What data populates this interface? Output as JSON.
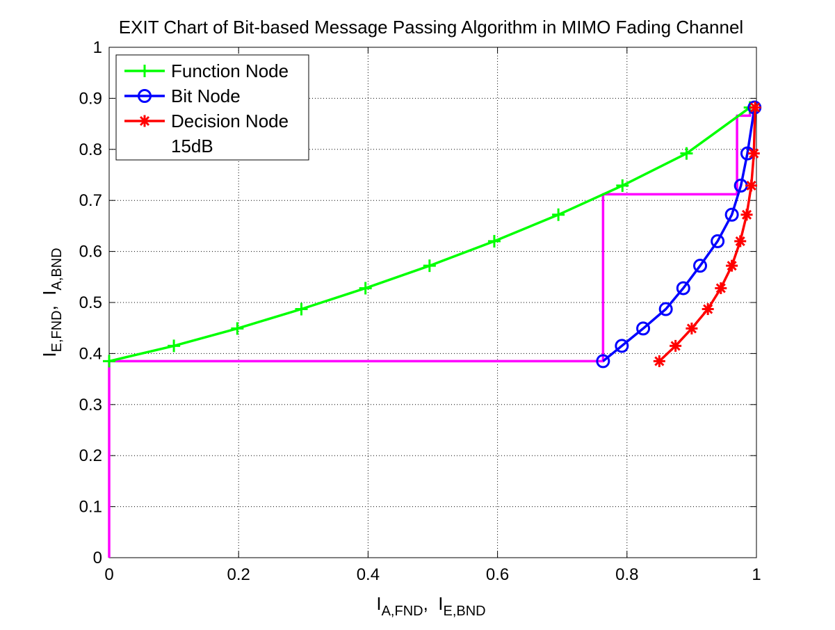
{
  "chart_data": {
    "type": "line",
    "title": "EXIT Chart of Bit-based Message Passing Algorithm in MIMO Fading Channel",
    "xlabel": {
      "main": "I",
      "sub1": "A,FND",
      "sep": ",  I",
      "sub2": "E,BND"
    },
    "ylabel": {
      "main": "I",
      "sub1": "E,FND",
      "sep": ",  I",
      "sub2": "A,BND"
    },
    "xlim": [
      0,
      1
    ],
    "ylim": [
      0,
      1
    ],
    "xticks": [
      "0",
      "0.2",
      "0.4",
      "0.6",
      "0.8",
      "1"
    ],
    "yticks": [
      "0",
      "0.1",
      "0.2",
      "0.3",
      "0.4",
      "0.5",
      "0.6",
      "0.7",
      "0.8",
      "0.9",
      "1"
    ],
    "grid": true,
    "legend_position": "top-left",
    "legend_extra": "15dB",
    "series": [
      {
        "name": "Function Node",
        "color": "#00ff00",
        "marker": "plus",
        "x": [
          0.0,
          0.1,
          0.198,
          0.297,
          0.396,
          0.495,
          0.595,
          0.694,
          0.793,
          0.892,
          0.99
        ],
        "y": [
          0.385,
          0.415,
          0.449,
          0.487,
          0.528,
          0.572,
          0.62,
          0.672,
          0.729,
          0.792,
          0.882
        ]
      },
      {
        "name": "Bit Node",
        "color": "#0000ff",
        "marker": "circle",
        "x": [
          0.763,
          0.792,
          0.825,
          0.86,
          0.887,
          0.913,
          0.94,
          0.962,
          0.976,
          0.986,
          0.997
        ],
        "y": [
          0.385,
          0.415,
          0.449,
          0.487,
          0.528,
          0.572,
          0.62,
          0.672,
          0.729,
          0.792,
          0.882
        ]
      },
      {
        "name": "Decision Node",
        "color": "#ff0000",
        "marker": "star",
        "x": [
          0.85,
          0.875,
          0.9,
          0.925,
          0.945,
          0.962,
          0.975,
          0.985,
          0.992,
          0.996,
          0.998
        ],
        "y": [
          0.385,
          0.415,
          0.449,
          0.487,
          0.528,
          0.572,
          0.62,
          0.672,
          0.729,
          0.792,
          0.882
        ]
      },
      {
        "color": "#ff00ff",
        "marker": "none",
        "x": [
          0,
          0,
          0.763,
          0.763,
          0.97,
          0.97,
          0.99,
          0.99
        ],
        "y": [
          0,
          0.385,
          0.385,
          0.712,
          0.712,
          0.866,
          0.866,
          0.882
        ]
      }
    ]
  }
}
